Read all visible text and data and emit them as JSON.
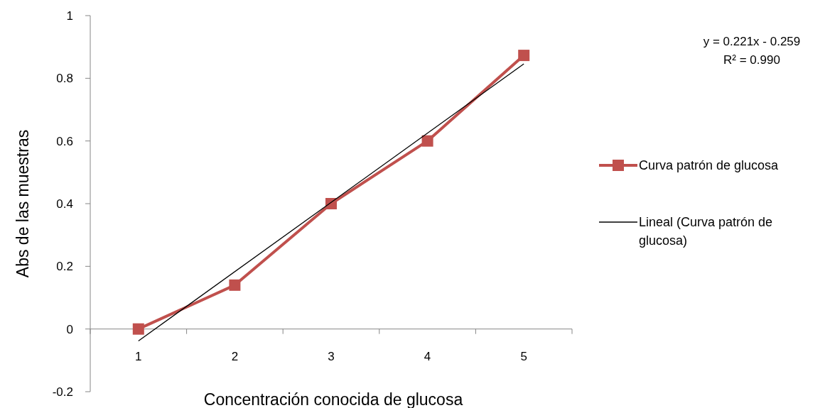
{
  "chart_data": {
    "type": "line",
    "xlabel": "Concentración conocida de glucosa",
    "ylabel": "Abs de las muestras",
    "x": [
      1,
      2,
      3,
      4,
      5
    ],
    "xlim": [
      0.5,
      5.5
    ],
    "xticks": [
      {
        "value": 0.5,
        "label": null
      },
      {
        "value": 1,
        "label": "1"
      },
      {
        "value": 1.5,
        "label": null
      },
      {
        "value": 2,
        "label": "2"
      },
      {
        "value": 2.5,
        "label": null
      },
      {
        "value": 3,
        "label": "3"
      },
      {
        "value": 3.5,
        "label": null
      },
      {
        "value": 4,
        "label": "4"
      },
      {
        "value": 4.5,
        "label": null
      },
      {
        "value": 5,
        "label": "5"
      },
      {
        "value": 5.5,
        "label": null
      }
    ],
    "ylim": [
      -0.2,
      1
    ],
    "yticks": [
      -0.2,
      0,
      0.2,
      0.4,
      0.6,
      0.8,
      1
    ],
    "marker": "square",
    "legend": "right",
    "series": [
      {
        "name": "Curva patrón de glucosa",
        "color": "#c0504d",
        "values": [
          0,
          0.14,
          0.4,
          0.6,
          0.873
        ]
      },
      {
        "name": "Lineal (Curva patrón de glucosa)",
        "color": "#000000",
        "x": [
          1,
          5
        ],
        "values": [
          -0.038,
          0.846
        ],
        "marker": "none"
      }
    ],
    "annotations": [
      "y = 0.221x - 0.259",
      "R² = 0.990"
    ]
  }
}
